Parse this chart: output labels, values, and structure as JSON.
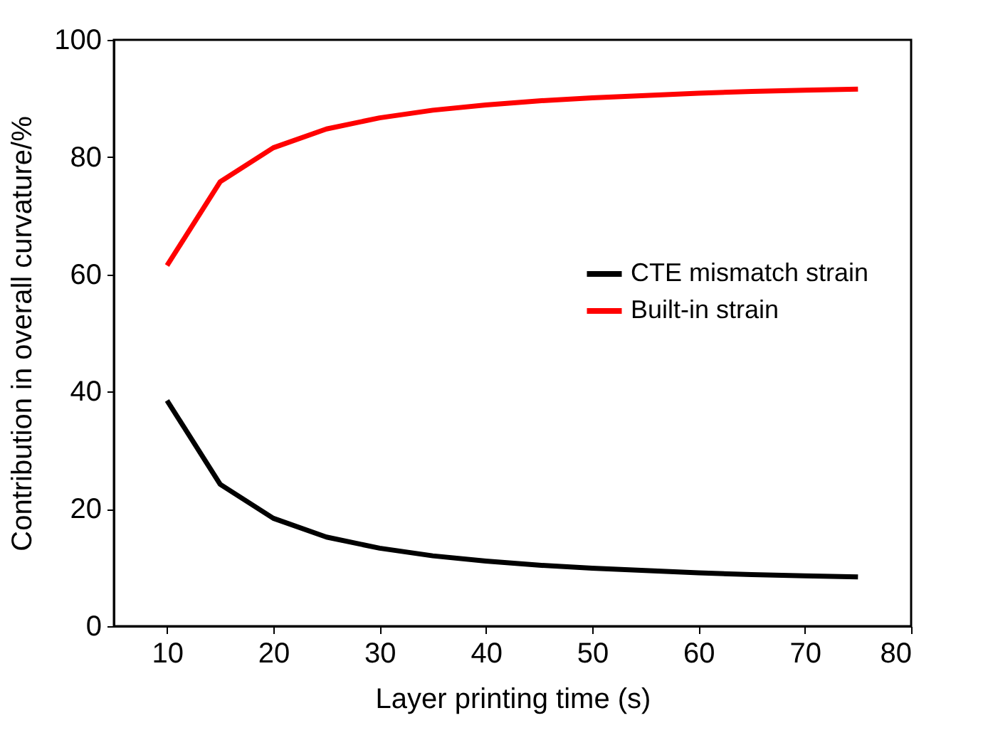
{
  "chart_data": {
    "type": "line",
    "xlabel": "Layer printing time (s)",
    "ylabel": "Contribution in overall curvature/%",
    "x": [
      10,
      15,
      20,
      25,
      30,
      35,
      40,
      45,
      50,
      55,
      60,
      65,
      70,
      75
    ],
    "series": [
      {
        "name": "CTE mismatch strain",
        "color": "#000000",
        "values": [
          38.5,
          24.2,
          18.4,
          15.2,
          13.3,
          12.0,
          11.1,
          10.4,
          9.9,
          9.5,
          9.1,
          8.8,
          8.6,
          8.4
        ]
      },
      {
        "name": "Built-in strain",
        "color": "#ff0000",
        "values": [
          61.5,
          75.8,
          81.6,
          84.8,
          86.7,
          88.0,
          88.9,
          89.6,
          90.1,
          90.5,
          90.9,
          91.2,
          91.4,
          91.6
        ]
      }
    ],
    "xlim": [
      5,
      80
    ],
    "xticks": [
      10,
      20,
      30,
      40,
      50,
      60,
      70,
      80
    ],
    "ylim": [
      0,
      100
    ],
    "yticks": [
      0,
      20,
      40,
      60,
      80,
      100
    ],
    "grid": false,
    "legend": "right",
    "marker": "none",
    "line_style": "solid"
  }
}
